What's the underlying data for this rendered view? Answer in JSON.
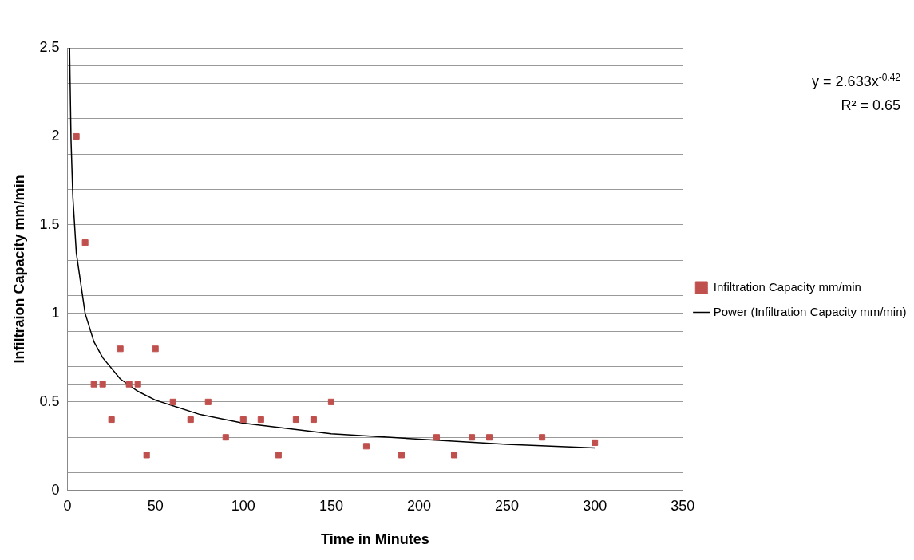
{
  "chart_data": {
    "type": "scatter",
    "xlabel": "Time in Minutes",
    "ylabel": "Infiltraion Capacity mm/min",
    "x": [
      5,
      10,
      15,
      20,
      25,
      30,
      35,
      40,
      45,
      50,
      60,
      70,
      80,
      90,
      100,
      110,
      120,
      130,
      140,
      150,
      170,
      190,
      210,
      220,
      230,
      240,
      270,
      300
    ],
    "series": [
      {
        "name": "Infiltration Capacity mm/min",
        "color": "#c0504d",
        "marker": "square",
        "values": [
          2.0,
          1.4,
          0.6,
          0.6,
          0.4,
          0.8,
          0.6,
          0.6,
          0.2,
          0.8,
          0.5,
          0.4,
          0.5,
          0.3,
          0.4,
          0.4,
          0.2,
          0.4,
          0.4,
          0.5,
          0.25,
          0.2,
          0.3,
          0.2,
          0.3,
          0.3,
          0.3,
          0.27
        ]
      },
      {
        "name": "Power (Infiltration Capacity mm/min)",
        "color": "#000000",
        "type": "line",
        "marker": "none",
        "line_style": "solid",
        "x": [
          1.15,
          2,
          3,
          5,
          10,
          15,
          20,
          30,
          40,
          50,
          75,
          100,
          150,
          200,
          250,
          300
        ],
        "values": [
          2.5,
          1.97,
          1.66,
          1.34,
          1.0,
          0.84,
          0.75,
          0.63,
          0.56,
          0.51,
          0.43,
          0.38,
          0.32,
          0.29,
          0.26,
          0.24
        ]
      }
    ],
    "xlim": [
      0,
      350
    ],
    "xticks": [
      0,
      50,
      100,
      150,
      200,
      250,
      300,
      350
    ],
    "ylim": [
      0,
      2.5
    ],
    "yticks": [
      0,
      {
        "value": 0.1,
        "label": null
      },
      {
        "value": 0.2,
        "label": null
      },
      {
        "value": 0.3,
        "label": null
      },
      {
        "value": 0.4,
        "label": null
      },
      0.5,
      {
        "value": 0.6,
        "label": null
      },
      {
        "value": 0.7,
        "label": null
      },
      {
        "value": 0.8,
        "label": null
      },
      {
        "value": 0.9,
        "label": null
      },
      1,
      {
        "value": 1.1,
        "label": null
      },
      {
        "value": 1.2,
        "label": null
      },
      {
        "value": 1.3,
        "label": null
      },
      {
        "value": 1.4,
        "label": null
      },
      1.5,
      {
        "value": 1.6,
        "label": null
      },
      {
        "value": 1.7,
        "label": null
      },
      {
        "value": 1.8,
        "label": null
      },
      {
        "value": 1.9,
        "label": null
      },
      2,
      {
        "value": 2.1,
        "label": null
      },
      {
        "value": 2.2,
        "label": null
      },
      {
        "value": 2.3,
        "label": null
      },
      {
        "value": 2.4,
        "label": null
      },
      2.5
    ],
    "grid": "y",
    "legend": "right",
    "annotations": [
      "y = 2.633x$^{-0.42}$",
      "R² = 0.65"
    ]
  }
}
